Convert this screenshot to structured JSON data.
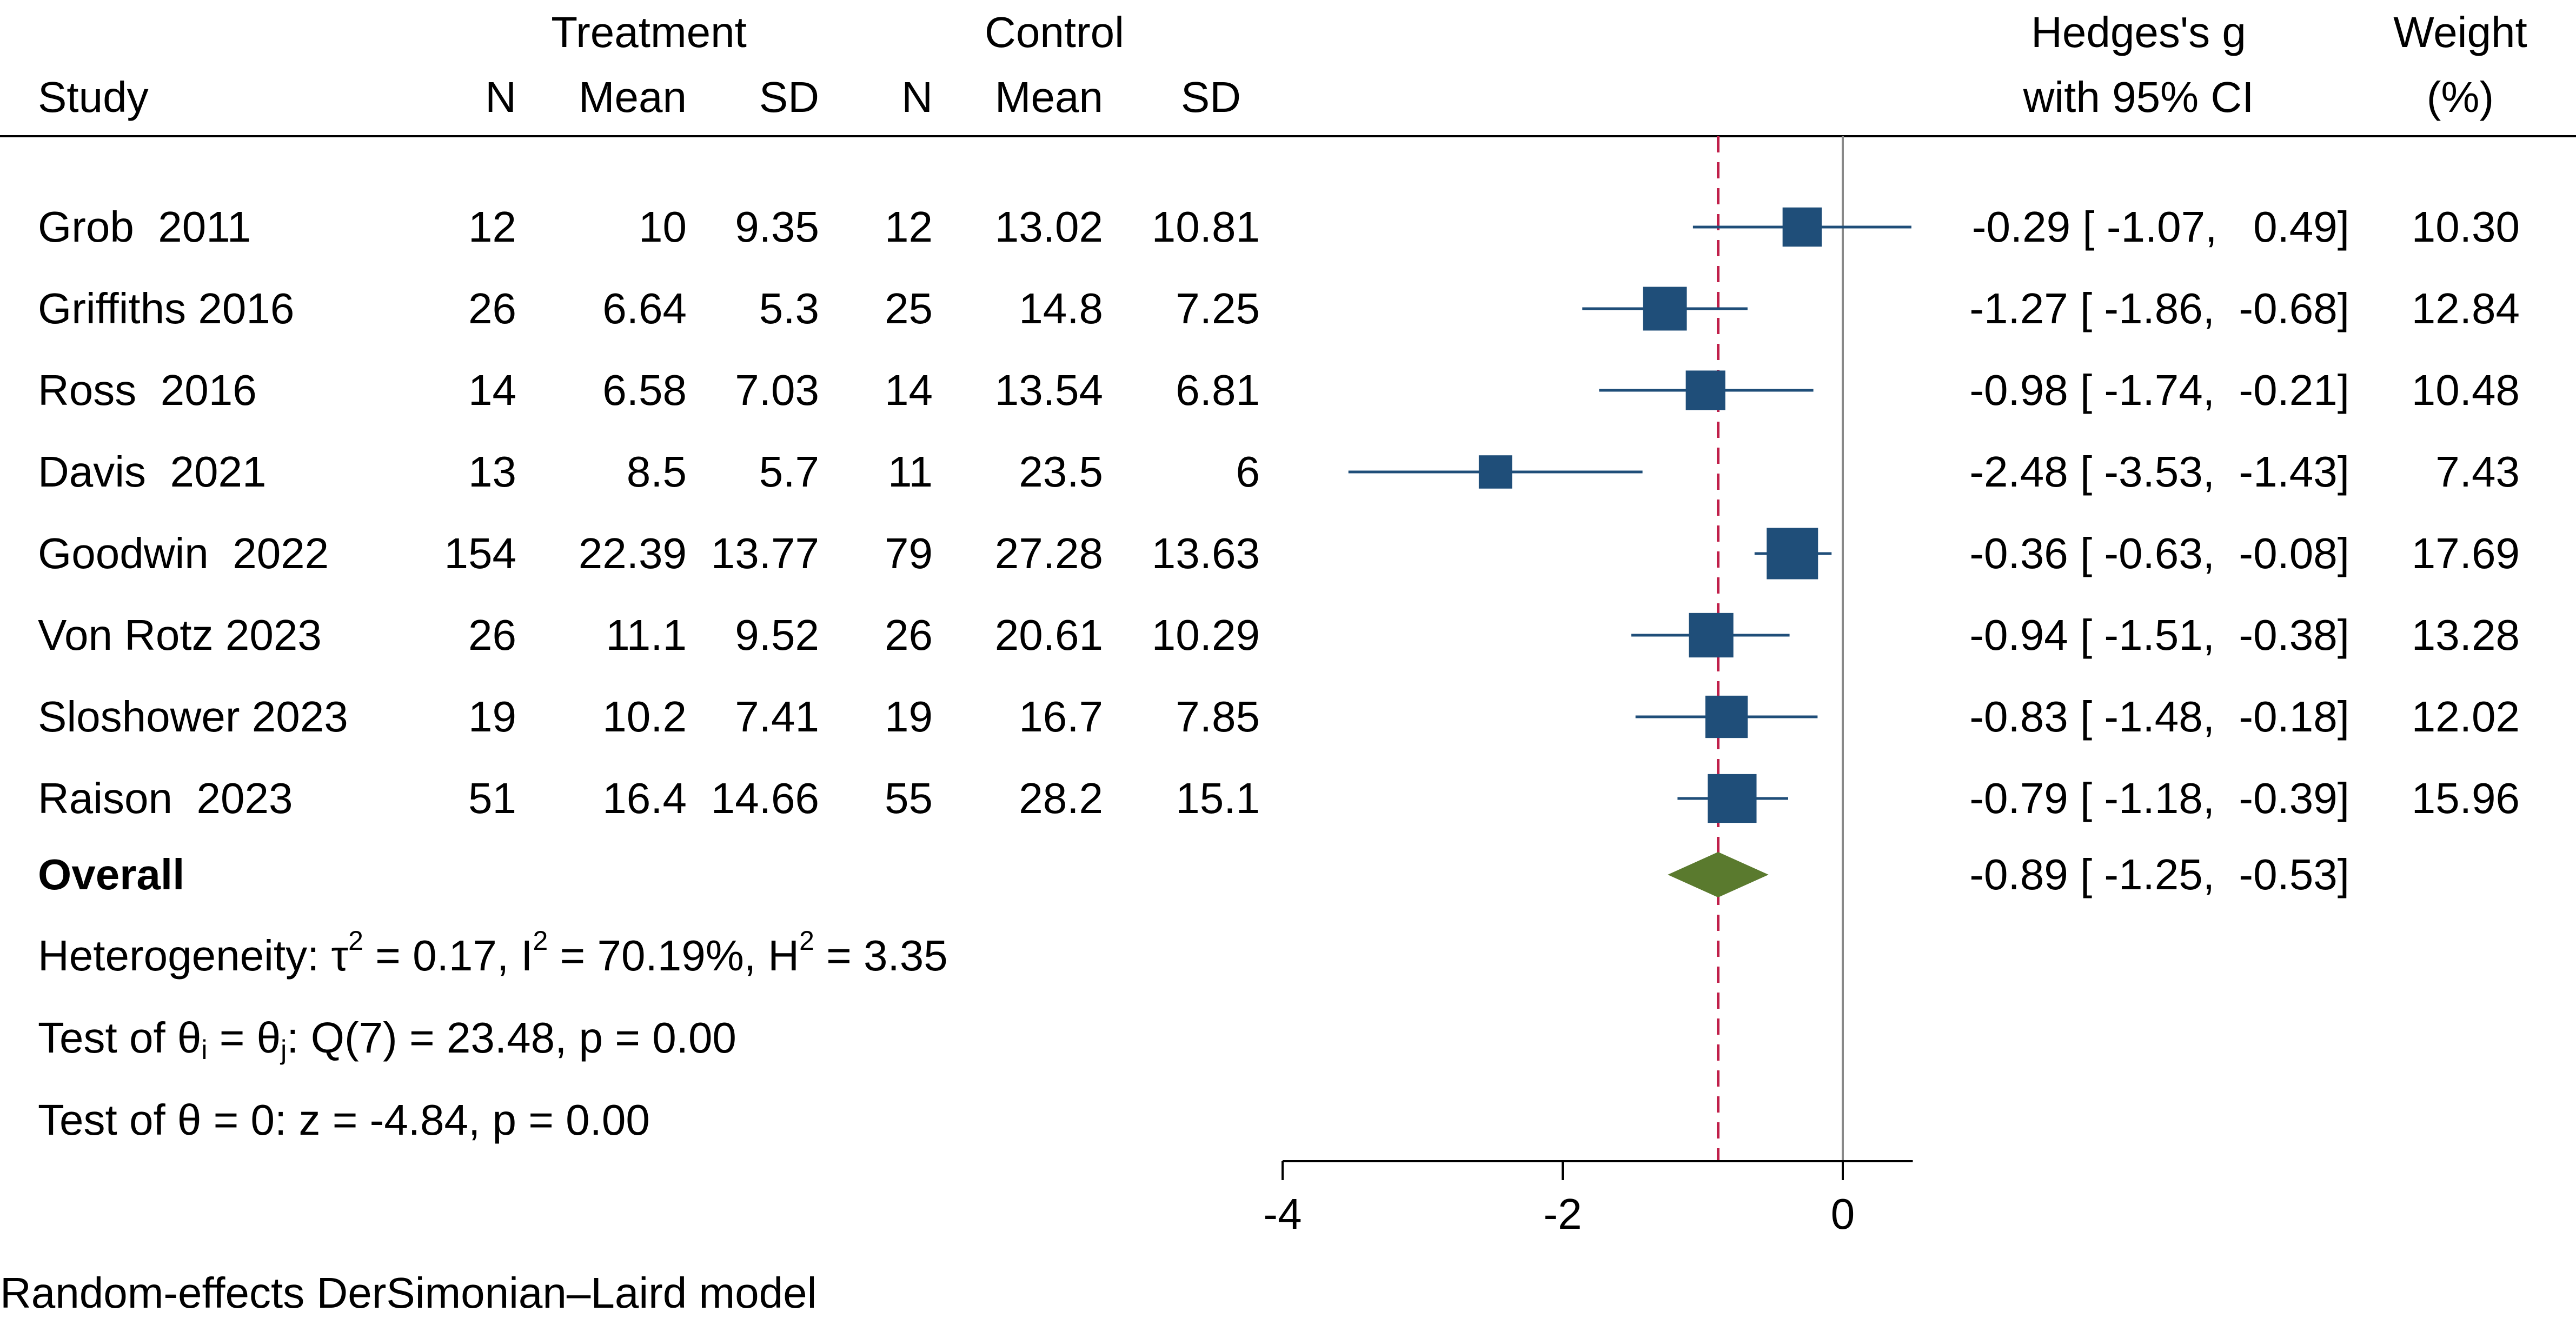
{
  "chart_data": {
    "type": "forest",
    "title": "",
    "xlabel": "",
    "xticks": [
      -4,
      -2,
      0
    ],
    "xlim": [
      -4,
      0.5
    ],
    "header": {
      "group_treatment": "Treatment",
      "group_control": "Control",
      "study": "Study",
      "n": "N",
      "mean": "Mean",
      "sd": "SD",
      "effect_line1": "Hedges's g",
      "effect_line2": "with 95% CI",
      "weight_line1": "Weight",
      "weight_line2": "(%)"
    },
    "studies": [
      {
        "study": "Grob  2011",
        "t_n": "12",
        "t_mean": "10",
        "t_sd": "9.35",
        "c_n": "12",
        "c_mean": "13.02",
        "c_sd": "10.81",
        "g": -0.29,
        "lo": -1.07,
        "hi": 0.49,
        "ci_text": "-0.29 [ -1.07,   0.49]",
        "weight": 10.3,
        "weight_text": "10.30"
      },
      {
        "study": "Griffiths 2016",
        "t_n": "26",
        "t_mean": "6.64",
        "t_sd": "5.3",
        "c_n": "25",
        "c_mean": "14.8",
        "c_sd": "7.25",
        "g": -1.27,
        "lo": -1.86,
        "hi": -0.68,
        "ci_text": "-1.27 [ -1.86,  -0.68]",
        "weight": 12.84,
        "weight_text": "12.84"
      },
      {
        "study": "Ross  2016",
        "t_n": "14",
        "t_mean": "6.58",
        "t_sd": "7.03",
        "c_n": "14",
        "c_mean": "13.54",
        "c_sd": "6.81",
        "g": -0.98,
        "lo": -1.74,
        "hi": -0.21,
        "ci_text": "-0.98 [ -1.74,  -0.21]",
        "weight": 10.48,
        "weight_text": "10.48"
      },
      {
        "study": "Davis  2021",
        "t_n": "13",
        "t_mean": "8.5",
        "t_sd": "5.7",
        "c_n": "11",
        "c_mean": "23.5",
        "c_sd": "6",
        "g": -2.48,
        "lo": -3.53,
        "hi": -1.43,
        "ci_text": "-2.48 [ -3.53,  -1.43]",
        "weight": 7.43,
        "weight_text": "7.43"
      },
      {
        "study": "Goodwin  2022",
        "t_n": "154",
        "t_mean": "22.39",
        "t_sd": "13.77",
        "c_n": "79",
        "c_mean": "27.28",
        "c_sd": "13.63",
        "g": -0.36,
        "lo": -0.63,
        "hi": -0.08,
        "ci_text": "-0.36 [ -0.63,  -0.08]",
        "weight": 17.69,
        "weight_text": "17.69"
      },
      {
        "study": "Von Rotz 2023",
        "t_n": "26",
        "t_mean": "11.1",
        "t_sd": "9.52",
        "c_n": "26",
        "c_mean": "20.61",
        "c_sd": "10.29",
        "g": -0.94,
        "lo": -1.51,
        "hi": -0.38,
        "ci_text": "-0.94 [ -1.51,  -0.38]",
        "weight": 13.28,
        "weight_text": "13.28"
      },
      {
        "study": "Sloshower 2023",
        "t_n": "19",
        "t_mean": "10.2",
        "t_sd": "7.41",
        "c_n": "19",
        "c_mean": "16.7",
        "c_sd": "7.85",
        "g": -0.83,
        "lo": -1.48,
        "hi": -0.18,
        "ci_text": "-0.83 [ -1.48,  -0.18]",
        "weight": 12.02,
        "weight_text": "12.02"
      },
      {
        "study": "Raison  2023",
        "t_n": "51",
        "t_mean": "16.4",
        "t_sd": "14.66",
        "c_n": "55",
        "c_mean": "28.2",
        "c_sd": "15.1",
        "g": -0.79,
        "lo": -1.18,
        "hi": -0.39,
        "ci_text": "-0.79 [ -1.18,  -0.39]",
        "weight": 15.96,
        "weight_text": "15.96"
      }
    ],
    "overall": {
      "label": "Overall",
      "g": -0.89,
      "lo": -1.25,
      "hi": -0.53,
      "ci_text": "-0.89 [ -1.25,  -0.53]"
    },
    "heterogeneity": {
      "prefix": "Heterogeneity: τ",
      "tau_exp": "2",
      "mid1": " = 0.17, I",
      "i_exp": "2",
      "mid2": " = 70.19%, H",
      "h_exp": "2",
      "end": " = 3.35"
    },
    "test_theta_ij": {
      "prefix": "Test of θ",
      "sub_i": "i",
      "mid": " = θ",
      "sub_j": "j",
      "end": ": Q(7) = 23.48, p = 0.00"
    },
    "test_theta_zero": "Test of θ = 0: z = -4.84, p = 0.00",
    "footnote": "Random-effects DerSimonian–Laird model",
    "colors": {
      "marker": "#1f4e79",
      "diamond": "#5a7a2e",
      "overall_line": "#c0204a",
      "null_line": "#888888"
    }
  }
}
